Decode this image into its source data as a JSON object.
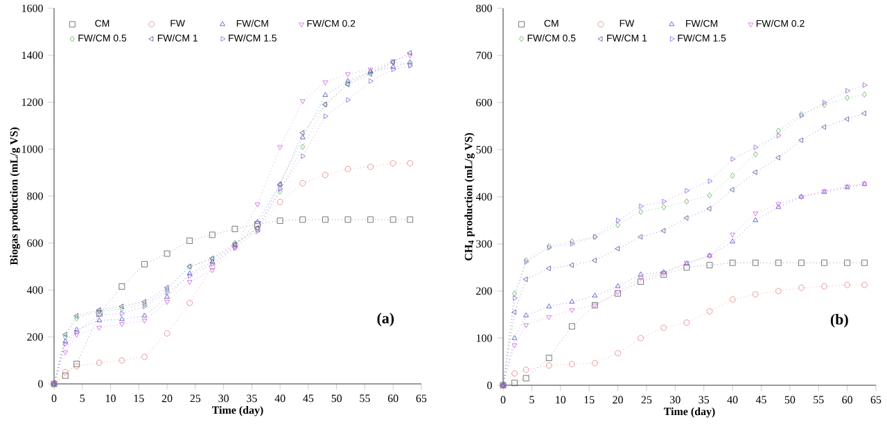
{
  "chart_data": [
    {
      "type": "line",
      "xlabel": "Time (day)",
      "ylabel": "Biogas production (mL/g VS)",
      "annotations": [
        "(a)"
      ],
      "xlim": [
        0,
        65
      ],
      "ylim": [
        0,
        1600
      ],
      "xticks": [
        0,
        5,
        10,
        15,
        20,
        25,
        30,
        35,
        40,
        45,
        50,
        55,
        60,
        65
      ],
      "yticks": [
        0,
        200,
        400,
        600,
        800,
        1000,
        1200,
        1400,
        1600
      ],
      "grid": false,
      "legend": "top",
      "line_style": "dotted",
      "x": [
        0,
        2,
        4,
        8,
        12,
        16,
        20,
        24,
        28,
        32,
        36,
        40,
        44,
        48,
        52,
        56,
        60,
        63
      ],
      "series": [
        {
          "name": "CM",
          "color": "#555555",
          "marker": "square",
          "values": [
            0,
            35,
            85,
            300,
            415,
            510,
            555,
            610,
            635,
            660,
            680,
            695,
            700,
            700,
            700,
            700,
            700,
            700
          ]
        },
        {
          "name": "FW",
          "color": "#e08080",
          "marker": "circle",
          "values": [
            0,
            50,
            75,
            90,
            100,
            115,
            215,
            345,
            500,
            590,
            660,
            775,
            855,
            890,
            915,
            925,
            940,
            940
          ]
        },
        {
          "name": "FW/CM",
          "color": "#4848c8",
          "marker": "triangle",
          "values": [
            0,
            180,
            230,
            270,
            275,
            290,
            370,
            470,
            520,
            590,
            690,
            850,
            1050,
            1230,
            1290,
            1330,
            1350,
            1370
          ]
        },
        {
          "name": "FW/CM 0.2",
          "color": "#d060e0",
          "marker": "triangle-down",
          "values": [
            0,
            135,
            210,
            240,
            255,
            270,
            350,
            435,
            485,
            580,
            765,
            1010,
            1205,
            1285,
            1320,
            1340,
            1375,
            1400
          ]
        },
        {
          "name": "FW/CM 0.5",
          "color": "#50b050",
          "marker": "diamond",
          "values": [
            0,
            200,
            280,
            310,
            320,
            340,
            400,
            500,
            530,
            600,
            660,
            820,
            1010,
            1190,
            1280,
            1330,
            1370,
            1360
          ]
        },
        {
          "name": "FW/CM 1",
          "color": "#5050a0",
          "marker": "triangle-left",
          "values": [
            0,
            210,
            290,
            315,
            330,
            350,
            410,
            500,
            535,
            595,
            665,
            850,
            1070,
            1190,
            1275,
            1320,
            1370,
            1410
          ]
        },
        {
          "name": "FW/CM 1.5",
          "color": "#9060e0",
          "marker": "triangle-right",
          "values": [
            0,
            170,
            220,
            295,
            300,
            330,
            390,
            460,
            510,
            580,
            650,
            830,
            970,
            1140,
            1210,
            1290,
            1340,
            1355
          ]
        }
      ]
    },
    {
      "type": "line",
      "xlabel": "Time (day)",
      "ylabel": "CH$_{4}$ production (mL/g VS)",
      "annotations": [
        "(b)"
      ],
      "xlim": [
        0,
        65
      ],
      "ylim": [
        0,
        800
      ],
      "xticks": [
        0,
        5,
        10,
        15,
        20,
        25,
        30,
        35,
        40,
        45,
        50,
        55,
        60,
        65
      ],
      "yticks": [
        0,
        100,
        200,
        300,
        400,
        500,
        600,
        700,
        800
      ],
      "grid": false,
      "legend": "top",
      "line_style": "dotted",
      "x": [
        0,
        2,
        4,
        8,
        12,
        16,
        20,
        24,
        28,
        32,
        36,
        40,
        44,
        48,
        52,
        56,
        60,
        63
      ],
      "series": [
        {
          "name": "CM",
          "color": "#555555",
          "marker": "square",
          "values": [
            0,
            5,
            15,
            58,
            125,
            170,
            195,
            220,
            235,
            250,
            255,
            260,
            260,
            260,
            260,
            260,
            260,
            260
          ]
        },
        {
          "name": "FW",
          "color": "#e08080",
          "marker": "circle",
          "values": [
            0,
            25,
            33,
            42,
            45,
            47,
            68,
            100,
            122,
            133,
            157,
            182,
            193,
            200,
            207,
            210,
            213,
            213
          ]
        },
        {
          "name": "FW/CM",
          "color": "#4848c8",
          "marker": "triangle",
          "values": [
            0,
            100,
            148,
            167,
            177,
            190,
            210,
            235,
            240,
            258,
            275,
            305,
            350,
            378,
            400,
            410,
            420,
            427
          ]
        },
        {
          "name": "FW/CM 0.2",
          "color": "#d060e0",
          "marker": "triangle-down",
          "values": [
            0,
            85,
            128,
            145,
            160,
            170,
            198,
            228,
            238,
            260,
            275,
            320,
            365,
            385,
            400,
            412,
            422,
            428
          ]
        },
        {
          "name": "FW/CM 0.5",
          "color": "#50b050",
          "marker": "diamond",
          "values": [
            0,
            195,
            265,
            295,
            305,
            315,
            340,
            368,
            378,
            390,
            403,
            445,
            490,
            540,
            575,
            595,
            610,
            617
          ]
        },
        {
          "name": "FW/CM 1",
          "color": "#5050a0",
          "marker": "triangle-left",
          "values": [
            0,
            155,
            225,
            248,
            255,
            265,
            290,
            315,
            328,
            355,
            375,
            415,
            452,
            483,
            520,
            548,
            565,
            577
          ]
        },
        {
          "name": "FW/CM 1.5",
          "color": "#9060e0",
          "marker": "triangle-right",
          "values": [
            0,
            185,
            262,
            292,
            300,
            315,
            350,
            380,
            390,
            413,
            433,
            480,
            505,
            530,
            572,
            600,
            625,
            637
          ]
        }
      ]
    }
  ]
}
